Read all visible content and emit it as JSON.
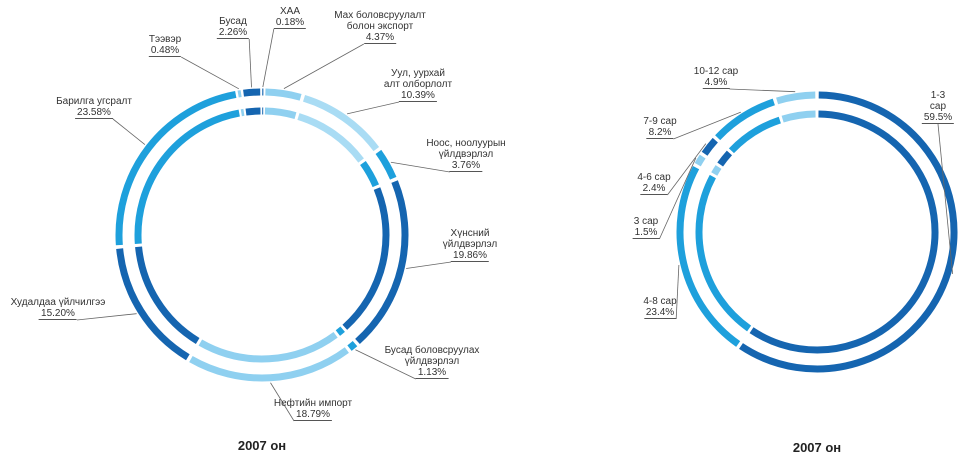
{
  "chart_data": [
    {
      "type": "pie",
      "title": "2007 он",
      "categories": [
        "ХАА",
        "Мах боловсруулалт\nболон экспорт",
        "Уул, уурхай\nалт олборлолт",
        "Ноос, ноолуурын\nүйлдвэрлэл",
        "Хүнсний\nүйлдвэрлэл",
        "Бусад боловсруулах\nүйлдвэрлэл",
        "Нефтийн  импорт",
        "Худалдаа үйлчилгээ",
        "Барилга угсралт",
        "Тээвэр",
        "Бусад"
      ],
      "values": [
        0.18,
        4.37,
        10.39,
        3.76,
        19.86,
        1.13,
        18.79,
        15.2,
        23.58,
        0.48,
        2.26
      ],
      "value_labels": [
        "0.18%",
        "4.37%",
        "10.39%",
        "3.76%",
        "19.86%",
        "1.13%",
        "18.79%",
        "15.20%",
        "23.58%",
        "0.48%",
        "2.26%"
      ],
      "colors": [
        "#1565b0",
        "#8fd0f0",
        "#a9dcf4",
        "#1ea0dc",
        "#1565b0",
        "#1ea0dc",
        "#8fd0f0",
        "#1565b0",
        "#1ea0dc",
        "#8fd0f0",
        "#1565b0"
      ]
    },
    {
      "type": "pie",
      "title": "2007 он",
      "categories": [
        "1-3 сар",
        "4-8 сар",
        "3 сар",
        "4-6 сар",
        "7-9 сар",
        "10-12 сар"
      ],
      "values": [
        59.5,
        23.4,
        1.5,
        2.4,
        8.2,
        4.9
      ],
      "value_labels": [
        "59.5%",
        "23.4%",
        "1.5%",
        "2.4%",
        "8.2%",
        "4.9%"
      ],
      "colors": [
        "#1565b0",
        "#1ea0dc",
        "#8fd0f0",
        "#1565b0",
        "#1ea0dc",
        "#8fd0f0"
      ]
    }
  ]
}
